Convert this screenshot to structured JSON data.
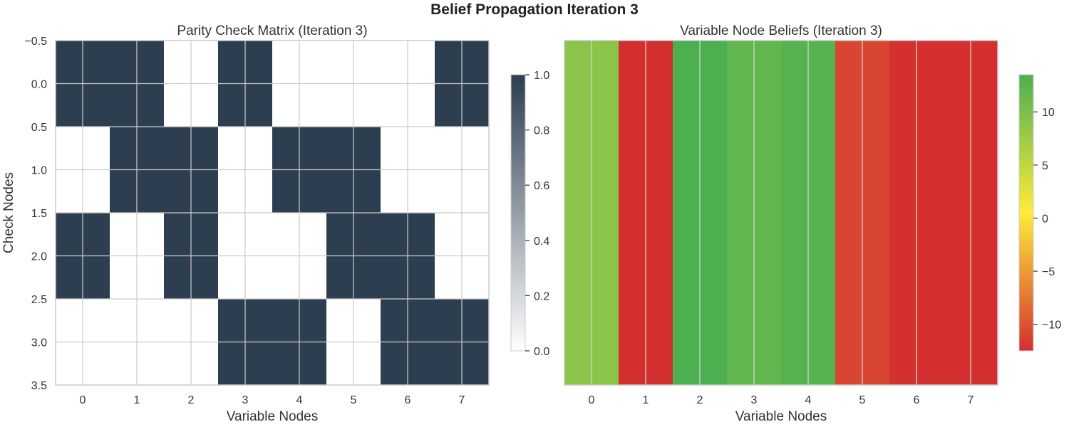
{
  "figure": {
    "title": "Belief Propagation Iteration 3"
  },
  "chart_data": [
    {
      "type": "heatmap",
      "title": "Parity Check Matrix (Iteration 3)",
      "xlabel": "Variable Nodes",
      "ylabel": "Check Nodes",
      "x_ticks": [
        "0",
        "1",
        "2",
        "3",
        "4",
        "5",
        "6",
        "7"
      ],
      "y_ticks": [
        "−0.5",
        "0.0",
        "0.5",
        "1.0",
        "1.5",
        "2.0",
        "2.5",
        "3.0",
        "3.5"
      ],
      "ylim": [
        3.5,
        -0.5
      ],
      "matrix": [
        [
          1,
          1,
          0,
          1,
          0,
          0,
          0,
          1
        ],
        [
          0,
          1,
          1,
          0,
          1,
          1,
          0,
          0
        ],
        [
          1,
          0,
          1,
          0,
          0,
          1,
          1,
          0
        ],
        [
          0,
          0,
          0,
          1,
          1,
          0,
          1,
          1
        ]
      ],
      "colormap": {
        "low": "#ffffff",
        "high": "#2c3e50"
      },
      "colorbar": {
        "range": [
          0,
          1
        ],
        "ticks": [
          "0.0",
          "0.2",
          "0.4",
          "0.6",
          "0.8",
          "1.0"
        ]
      },
      "grid": true
    },
    {
      "type": "heatmap",
      "title": "Variable Node Beliefs (Iteration 3)",
      "xlabel": "Variable Nodes",
      "x_ticks": [
        "0",
        "1",
        "2",
        "3",
        "4",
        "5",
        "6",
        "7"
      ],
      "values": [
        9.0,
        -12.5,
        13.5,
        12.0,
        12.8,
        -11.0,
        -12.4,
        -12.4
      ],
      "colormap": {
        "stops": [
          "#d32f2f",
          "#ffeb3b",
          "#4caf50"
        ]
      },
      "colorbar": {
        "range": [
          -12.5,
          13.5
        ],
        "ticks": [
          "−10",
          "−5",
          "0",
          "5",
          "10"
        ]
      },
      "grid": true
    }
  ]
}
